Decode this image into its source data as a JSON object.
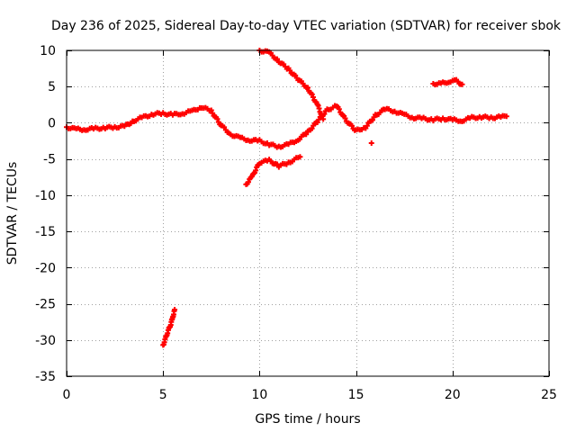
{
  "chart_data": {
    "type": "scatter",
    "title": "Day 236 of 2025, Sidereal Day-to-day VTEC variation (SDTVAR) for receiver sbok",
    "xlabel": "GPS time / hours",
    "ylabel": "SDTVAR / TECUs",
    "xlim": [
      0,
      25
    ],
    "ylim": [
      -35,
      10
    ],
    "xticks": [
      0,
      5,
      10,
      15,
      20,
      25
    ],
    "yticks": [
      10,
      5,
      0,
      -5,
      -10,
      -15,
      -20,
      -25,
      -30,
      -35
    ],
    "grid": true,
    "legend": "none",
    "marker": "+",
    "series_color": "#ff0000",
    "series": [
      {
        "name": "main-track",
        "x": [
          0,
          0.5,
          1,
          1.5,
          2,
          2.5,
          3,
          3.5,
          4,
          4.5,
          5,
          5.5,
          6,
          6.5,
          7,
          7.5,
          8,
          8.5,
          9,
          9.5,
          10,
          10.5,
          11,
          11.5,
          12,
          12.5,
          13,
          13.5,
          14,
          14.5,
          15,
          15.5,
          16,
          16.5,
          17,
          17.5,
          18,
          18.5,
          19,
          19.5,
          20,
          20.5,
          21,
          21.5,
          22,
          22.5,
          22.8
        ],
        "y": [
          -0.6,
          -0.9,
          -0.9,
          -0.8,
          -0.7,
          -0.6,
          -0.5,
          0.3,
          0.8,
          1.2,
          1.3,
          1.1,
          1.3,
          1.6,
          2.2,
          1.6,
          -0.3,
          -1.6,
          -2.1,
          -2.4,
          -2.5,
          -3.0,
          -3.3,
          -3.0,
          -2.3,
          -1.3,
          0.2,
          1.8,
          2.3,
          0.3,
          -1.1,
          -0.6,
          1.0,
          1.9,
          1.6,
          1.1,
          0.7,
          0.6,
          0.4,
          0.6,
          0.4,
          0.3,
          0.7,
          0.8,
          0.7,
          0.8,
          0.9
        ]
      },
      {
        "name": "upper-branch",
        "x": [
          10,
          10.5,
          11,
          11.5,
          12,
          12.5,
          13,
          13.3
        ],
        "y": [
          10,
          9.7,
          8.5,
          7.4,
          6.0,
          4.8,
          2.5,
          0.5
        ]
      },
      {
        "name": "lower-branch",
        "x": [
          9.3,
          9.6,
          10,
          10.5,
          11,
          11.5,
          12.1
        ],
        "y": [
          -8.5,
          -7.5,
          -5.5,
          -5.2,
          -6.0,
          -5.5,
          -4.7
        ]
      },
      {
        "name": "late-cluster",
        "x": [
          19,
          19.4,
          19.8,
          20.2,
          20.5
        ],
        "y": [
          5.4,
          5.4,
          5.7,
          5.8,
          5.3
        ]
      },
      {
        "name": "negative-excursion",
        "x": [
          5.0,
          5.1,
          5.2,
          5.3,
          5.4,
          5.5,
          5.6
        ],
        "y": [
          -30.7,
          -30.0,
          -29.2,
          -28.5,
          -27.8,
          -26.9,
          -25.8
        ]
      },
      {
        "name": "isolated-point",
        "x": [
          15.8
        ],
        "y": [
          -2.8
        ]
      }
    ]
  }
}
